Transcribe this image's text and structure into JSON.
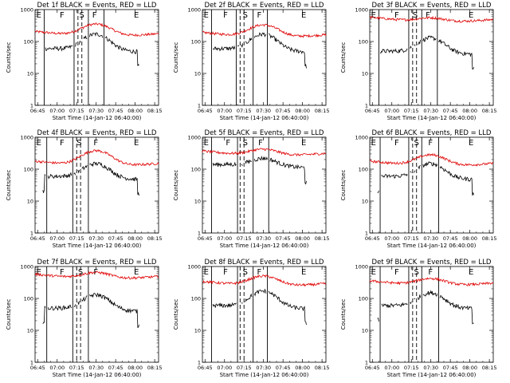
{
  "chart_data": [
    {
      "type": "line",
      "title": "Det 1f BLACK = Events, RED = LLD",
      "ylabel": "Counts/sec",
      "xlabel": "Start Time (14-Jan-12 06:40:00)",
      "x_ticks": [
        "06:45",
        "07:00",
        "07:15",
        "07:30",
        "07:45",
        "08:00",
        "08:15"
      ],
      "y_ticks": [
        "1",
        "10",
        "100",
        "1000"
      ],
      "xlim": [
        "06:43",
        "08:18"
      ],
      "ylim": [
        1,
        1000
      ],
      "y_scale": "log",
      "red_level": 150,
      "red_peak": 350,
      "black_level": 60,
      "black_peak": 170,
      "black_start": "06:49",
      "black_end": "08:03",
      "solid_markers": [
        "06:50",
        "07:13",
        "07:24",
        "07:36"
      ],
      "dashed_markers": [
        "07:16",
        "07:19"
      ],
      "segment_labels": [
        {
          "text": "E",
          "x": "06:44"
        },
        {
          "text": "F",
          "x": "07:02"
        },
        {
          "text": "S",
          "x": "07:17"
        },
        {
          "text": "F",
          "x": "07:27"
        },
        {
          "text": "E",
          "x": "07:59"
        }
      ]
    },
    {
      "type": "line",
      "title": "Det 2f BLACK = Events, RED = LLD",
      "ylabel": "Counts/sec",
      "xlabel": "Start Time (14-Jan-12 06:40:00)",
      "x_ticks": [
        "06:45",
        "07:00",
        "07:15",
        "07:30",
        "07:45",
        "08:00",
        "08:15"
      ],
      "y_ticks": [
        "1",
        "10",
        "100",
        "1000"
      ],
      "xlim": [
        "06:43",
        "08:18"
      ],
      "ylim": [
        1,
        1000
      ],
      "y_scale": "log",
      "red_level": 140,
      "red_peak": 330,
      "black_level": 60,
      "black_peak": 170,
      "black_start": "06:49",
      "black_end": "08:03",
      "solid_markers": [
        "06:50",
        "07:09",
        "07:22",
        "07:33"
      ],
      "dashed_markers": [
        "07:12",
        "07:15"
      ],
      "segment_labels": [
        {
          "text": "E",
          "x": "06:44"
        },
        {
          "text": "F",
          "x": "06:59"
        },
        {
          "text": "S",
          "x": "07:14"
        },
        {
          "text": "F",
          "x": "07:25"
        },
        {
          "text": "E",
          "x": "07:59"
        }
      ]
    },
    {
      "type": "line",
      "title": "Det 3f BLACK = Events, RED = LLD",
      "ylabel": "Counts/sec",
      "xlabel": "Start Time (14-Jan-12 06:40:00)",
      "x_ticks": [
        "06:45",
        "07:00",
        "07:15",
        "07:30",
        "07:45",
        "08:00",
        "08:15"
      ],
      "y_ticks": [
        "1",
        "10",
        "100",
        "1000"
      ],
      "xlim": [
        "06:43",
        "08:18"
      ],
      "ylim": [
        1,
        1000
      ],
      "y_scale": "log",
      "red_level": 420,
      "red_peak": 550,
      "black_level": 50,
      "black_peak": 130,
      "black_start": "06:49",
      "black_end": "08:03",
      "solid_markers": [
        "06:50",
        "07:13",
        "07:23",
        "07:35"
      ],
      "dashed_markers": [
        "07:16",
        "07:19"
      ],
      "segment_labels": [
        {
          "text": "E",
          "x": "06:44"
        },
        {
          "text": "F",
          "x": "07:02"
        },
        {
          "text": "S",
          "x": "07:16"
        },
        {
          "text": "F",
          "x": "07:26"
        },
        {
          "text": "E",
          "x": "07:59"
        }
      ]
    },
    {
      "type": "line",
      "title": "Det 4f BLACK = Events, RED = LLD",
      "ylabel": "Counts/sec",
      "xlabel": "Start Time (14-Jan-12 06:40:00)",
      "x_ticks": [
        "06:45",
        "07:00",
        "07:15",
        "07:30",
        "07:45",
        "08:00",
        "08:15"
      ],
      "y_ticks": [
        "1",
        "10",
        "100",
        "1000"
      ],
      "xlim": [
        "06:43",
        "08:18"
      ],
      "ylim": [
        1,
        1000
      ],
      "y_scale": "log",
      "red_level": 130,
      "red_peak": 380,
      "black_level": 60,
      "black_peak": 150,
      "black_start": "06:49",
      "black_end": "08:03",
      "solid_markers": [
        "06:52",
        "07:12",
        "07:24"
      ],
      "dashed_markers": [
        "07:15",
        "07:18"
      ],
      "segment_labels": [
        {
          "text": "E",
          "x": "06:44"
        },
        {
          "text": "F",
          "x": "07:02"
        },
        {
          "text": "S",
          "x": "07:15"
        },
        {
          "text": "F",
          "x": "07:28"
        },
        {
          "text": "E",
          "x": "07:59"
        }
      ]
    },
    {
      "type": "line",
      "title": "Det 5f BLACK = Events, RED = LLD",
      "ylabel": "Counts/sec",
      "xlabel": "Start Time (14-Jan-12 06:40:00)",
      "x_ticks": [
        "06:45",
        "07:00",
        "07:15",
        "07:30",
        "07:45",
        "08:00",
        "08:15"
      ],
      "y_ticks": [
        "1",
        "10",
        "100",
        "1000"
      ],
      "xlim": [
        "06:43",
        "08:18"
      ],
      "ylim": [
        1,
        1000
      ],
      "y_scale": "log",
      "red_level": 270,
      "red_peak": 420,
      "black_level": 140,
      "black_peak": 220,
      "black_start": "06:49",
      "black_end": "08:03",
      "solid_markers": [
        "06:50",
        "07:10",
        "07:22",
        "07:34"
      ],
      "dashed_markers": [
        "07:12",
        "07:15"
      ],
      "segment_labels": [
        {
          "text": "E",
          "x": "06:44"
        },
        {
          "text": "F",
          "x": "07:01"
        },
        {
          "text": "S",
          "x": "07:14"
        },
        {
          "text": "F",
          "x": "07:26"
        },
        {
          "text": "E",
          "x": "07:59"
        }
      ]
    },
    {
      "type": "line",
      "title": "Det 6f BLACK = Events, RED = LLD",
      "ylabel": "Counts/sec",
      "xlabel": "Start Time (14-Jan-12 06:40:00)",
      "x_ticks": [
        "06:45",
        "07:00",
        "07:15",
        "07:30",
        "07:45",
        "08:00",
        "08:15"
      ],
      "y_ticks": [
        "1",
        "10",
        "100",
        "1000"
      ],
      "xlim": [
        "06:43",
        "08:18"
      ],
      "ylim": [
        1,
        1000
      ],
      "y_scale": "log",
      "red_level": 130,
      "red_peak": 280,
      "black_level": 60,
      "black_peak": 150,
      "black_start": "06:49",
      "black_end": "08:03",
      "solid_markers": [
        "06:51",
        "07:13",
        "07:23",
        "07:36"
      ],
      "dashed_markers": [
        "07:16",
        "07:19"
      ],
      "segment_labels": [
        {
          "text": "E",
          "x": "06:44"
        },
        {
          "text": "F",
          "x": "07:02"
        },
        {
          "text": "S",
          "x": "07:17"
        },
        {
          "text": "F",
          "x": "07:28"
        },
        {
          "text": "E",
          "x": "07:59"
        }
      ]
    },
    {
      "type": "line",
      "title": "Det 7f BLACK = Events, RED = LLD",
      "ylabel": "Counts/sec",
      "xlabel": "Start Time (14-Jan-12 06:40:00)",
      "x_ticks": [
        "06:45",
        "07:00",
        "07:15",
        "07:30",
        "07:45",
        "08:00",
        "08:15"
      ],
      "y_ticks": [
        "1",
        "10",
        "100",
        "1000"
      ],
      "xlim": [
        "06:43",
        "08:18"
      ],
      "ylim": [
        1,
        1000
      ],
      "y_scale": "log",
      "red_level": 420,
      "red_peak": 650,
      "black_level": 50,
      "black_peak": 130,
      "black_start": "06:49",
      "black_end": "08:03",
      "solid_markers": [
        "06:52",
        "07:12",
        "07:24"
      ],
      "dashed_markers": [
        "07:15",
        "07:18"
      ],
      "segment_labels": [
        {
          "text": "E",
          "x": "06:44"
        },
        {
          "text": "F",
          "x": "07:02"
        },
        {
          "text": "S",
          "x": "07:16"
        },
        {
          "text": "F",
          "x": "07:28"
        },
        {
          "text": "E",
          "x": "07:59"
        }
      ]
    },
    {
      "type": "line",
      "title": "Det 8f BLACK = Events, RED = LLD",
      "ylabel": "Counts/sec",
      "xlabel": "Start Time (14-Jan-12 06:40:00)",
      "x_ticks": [
        "06:45",
        "07:00",
        "07:15",
        "07:30",
        "07:45",
        "08:00",
        "08:15"
      ],
      "y_ticks": [
        "1",
        "10",
        "100",
        "1000"
      ],
      "xlim": [
        "06:43",
        "08:18"
      ],
      "ylim": [
        1,
        1000
      ],
      "y_scale": "log",
      "red_level": 250,
      "red_peak": 500,
      "black_level": 60,
      "black_peak": 170,
      "black_start": "06:49",
      "black_end": "08:03",
      "solid_markers": [
        "06:50",
        "07:10",
        "07:22",
        "07:33"
      ],
      "dashed_markers": [
        "07:12",
        "07:15"
      ],
      "segment_labels": [
        {
          "text": "E",
          "x": "06:44"
        },
        {
          "text": "F",
          "x": "06:59"
        },
        {
          "text": "S",
          "x": "07:14"
        },
        {
          "text": "F",
          "x": "07:25"
        },
        {
          "text": "E",
          "x": "07:59"
        }
      ]
    },
    {
      "type": "line",
      "title": "Det 9f BLACK = Events, RED = LLD",
      "ylabel": "Counts/sec",
      "xlabel": "Start Time (14-Jan-12 06:40:00)",
      "x_ticks": [
        "06:45",
        "07:00",
        "07:15",
        "07:30",
        "07:45",
        "08:00",
        "08:15"
      ],
      "y_ticks": [
        "1",
        "10",
        "100",
        "1000"
      ],
      "xlim": [
        "06:43",
        "08:18"
      ],
      "ylim": [
        1,
        1000
      ],
      "y_scale": "log",
      "red_level": 260,
      "red_peak": 420,
      "black_level": 60,
      "black_peak": 150,
      "black_start": "06:49",
      "black_end": "08:03",
      "solid_markers": [
        "06:51",
        "07:13",
        "07:23",
        "07:36"
      ],
      "dashed_markers": [
        "07:16",
        "07:19"
      ],
      "segment_labels": [
        {
          "text": "E",
          "x": "06:44"
        },
        {
          "text": "F",
          "x": "07:02"
        },
        {
          "text": "S",
          "x": "07:17"
        },
        {
          "text": "F",
          "x": "07:28"
        },
        {
          "text": "E",
          "x": "07:59"
        }
      ]
    }
  ],
  "colors": {
    "events": "#000000",
    "lld": "#e00000",
    "axes": "#000000"
  }
}
